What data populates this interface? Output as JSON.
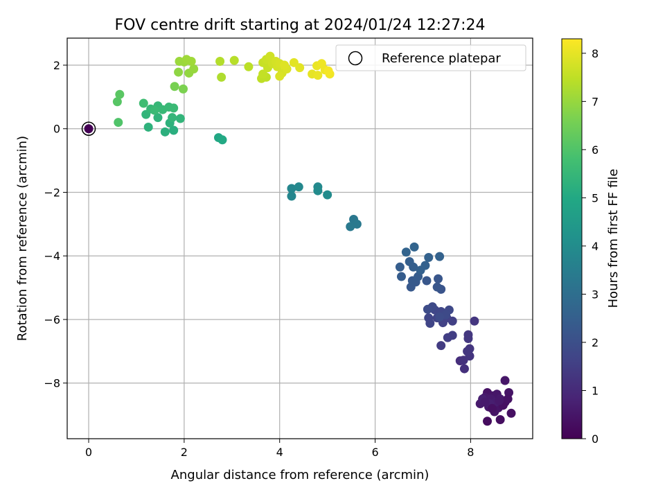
{
  "chart_data": {
    "type": "scatter",
    "title": "FOV centre drift starting at 2024/01/24 12:27:24",
    "xlabel": "Angular distance from reference (arcmin)",
    "ylabel": "Rotation from reference (arcmin)",
    "xlim": [
      -0.45,
      9.3
    ],
    "ylim": [
      -9.75,
      2.85
    ],
    "xticks": [
      0,
      2,
      4,
      6,
      8
    ],
    "xtick_labels": [
      "0",
      "2",
      "4",
      "6",
      "8"
    ],
    "yticks": [
      2,
      0,
      -2,
      -4,
      -6,
      -8
    ],
    "ytick_labels": [
      "2",
      "0",
      "−2",
      "−4",
      "−6",
      "−8"
    ],
    "grid": true,
    "legend": {
      "placement": "top-right",
      "entries": [
        "Reference platepar"
      ]
    },
    "reference_point": {
      "x": 0,
      "y": 0
    },
    "colorbar": {
      "label": "Hours from first FF file",
      "colormap": "viridis",
      "range": [
        0,
        8.3
      ],
      "ticks": [
        0,
        1,
        2,
        3,
        4,
        5,
        6,
        7,
        8
      ],
      "tick_labels": [
        "0",
        "1",
        "2",
        "3",
        "4",
        "5",
        "6",
        "7",
        "8"
      ]
    },
    "points": [
      [
        0.0,
        0.0,
        0.0
      ],
      [
        8.35,
        -8.3,
        0.4
      ],
      [
        8.28,
        -8.55,
        0.5
      ],
      [
        8.45,
        -8.4,
        0.45
      ],
      [
        8.55,
        -8.35,
        0.5
      ],
      [
        8.62,
        -8.5,
        0.6
      ],
      [
        8.38,
        -8.75,
        0.55
      ],
      [
        8.5,
        -8.9,
        0.45
      ],
      [
        8.72,
        -8.6,
        0.4
      ],
      [
        8.8,
        -8.3,
        0.45
      ],
      [
        8.72,
        -7.92,
        0.5
      ],
      [
        8.85,
        -8.95,
        0.35
      ],
      [
        8.62,
        -9.15,
        0.3
      ],
      [
        8.35,
        -9.2,
        0.25
      ],
      [
        8.2,
        -8.65,
        0.6
      ],
      [
        8.3,
        -8.45,
        0.55
      ],
      [
        8.48,
        -8.62,
        0.5
      ],
      [
        8.58,
        -8.78,
        0.45
      ],
      [
        8.42,
        -8.5,
        0.6
      ],
      [
        8.25,
        -8.5,
        0.7
      ],
      [
        8.68,
        -8.7,
        0.35
      ],
      [
        8.78,
        -8.5,
        0.4
      ],
      [
        8.52,
        -8.6,
        0.65
      ],
      [
        8.4,
        -8.65,
        0.7
      ],
      [
        8.6,
        -8.55,
        0.55
      ],
      [
        8.3,
        -8.6,
        0.6
      ],
      [
        8.45,
        -8.8,
        0.35
      ],
      [
        7.78,
        -7.3,
        1.1
      ],
      [
        7.87,
        -7.55,
        1.15
      ],
      [
        7.85,
        -7.28,
        1.2
      ],
      [
        7.98,
        -7.15,
        1.25
      ],
      [
        7.93,
        -7.0,
        1.3
      ],
      [
        7.98,
        -6.92,
        1.3
      ],
      [
        7.95,
        -6.6,
        1.35
      ],
      [
        8.08,
        -6.05,
        1.3
      ],
      [
        7.95,
        -6.48,
        1.35
      ],
      [
        7.38,
        -6.82,
        1.45
      ],
      [
        7.52,
        -6.57,
        1.5
      ],
      [
        7.62,
        -6.5,
        1.5
      ],
      [
        7.62,
        -6.05,
        1.55
      ],
      [
        7.5,
        -5.95,
        1.6
      ],
      [
        7.42,
        -6.1,
        1.6
      ],
      [
        7.3,
        -5.95,
        1.65
      ],
      [
        7.15,
        -6.12,
        1.7
      ],
      [
        7.12,
        -5.95,
        1.7
      ],
      [
        7.25,
        -5.7,
        1.75
      ],
      [
        7.38,
        -5.75,
        1.75
      ],
      [
        7.55,
        -5.7,
        1.8
      ],
      [
        7.48,
        -5.85,
        1.85
      ],
      [
        7.2,
        -5.6,
        1.85
      ],
      [
        7.1,
        -5.68,
        1.9
      ],
      [
        7.35,
        -5.92,
        1.9
      ],
      [
        7.38,
        -5.05,
        2.15
      ],
      [
        7.3,
        -4.98,
        2.2
      ],
      [
        7.32,
        -4.72,
        2.2
      ],
      [
        7.08,
        -4.78,
        2.25
      ],
      [
        6.85,
        -4.82,
        2.3
      ],
      [
        6.75,
        -4.98,
        2.3
      ],
      [
        6.78,
        -4.78,
        2.35
      ],
      [
        6.9,
        -4.65,
        2.4
      ],
      [
        6.55,
        -4.65,
        2.4
      ],
      [
        6.52,
        -4.35,
        2.45
      ],
      [
        6.72,
        -4.18,
        2.5
      ],
      [
        6.8,
        -4.35,
        2.5
      ],
      [
        6.95,
        -4.45,
        2.55
      ],
      [
        7.05,
        -4.3,
        2.55
      ],
      [
        7.12,
        -4.05,
        2.6
      ],
      [
        7.35,
        -4.02,
        2.6
      ],
      [
        6.82,
        -3.72,
        2.65
      ],
      [
        6.65,
        -3.88,
        2.65
      ],
      [
        5.55,
        -2.85,
        3.3
      ],
      [
        5.62,
        -3.0,
        3.35
      ],
      [
        5.48,
        -3.08,
        3.35
      ],
      [
        4.25,
        -1.88,
        3.8
      ],
      [
        4.25,
        -2.12,
        3.8
      ],
      [
        4.4,
        -1.83,
        3.85
      ],
      [
        4.8,
        -1.83,
        3.9
      ],
      [
        4.8,
        -1.95,
        3.95
      ],
      [
        5.0,
        -2.08,
        3.95
      ],
      [
        2.72,
        -0.28,
        4.95
      ],
      [
        2.8,
        -0.35,
        5.0
      ],
      [
        1.78,
        -0.05,
        5.2
      ],
      [
        1.6,
        -0.1,
        5.25
      ],
      [
        1.7,
        0.18,
        5.3
      ],
      [
        1.25,
        0.05,
        5.3
      ],
      [
        1.45,
        0.35,
        5.35
      ],
      [
        1.2,
        0.45,
        5.4
      ],
      [
        1.92,
        0.32,
        5.4
      ],
      [
        1.75,
        0.35,
        5.45
      ],
      [
        1.3,
        0.62,
        5.5
      ],
      [
        1.45,
        0.72,
        5.5
      ],
      [
        1.55,
        0.6,
        5.55
      ],
      [
        1.68,
        0.68,
        5.55
      ],
      [
        1.78,
        0.65,
        5.6
      ],
      [
        1.38,
        0.58,
        5.6
      ],
      [
        1.15,
        0.8,
        5.7
      ],
      [
        0.62,
        0.2,
        6.0
      ],
      [
        0.6,
        0.85,
        6.1
      ],
      [
        0.65,
        1.08,
        6.15
      ],
      [
        1.8,
        1.33,
        6.6
      ],
      [
        1.98,
        1.25,
        6.65
      ],
      [
        1.88,
        1.78,
        6.9
      ],
      [
        2.1,
        1.75,
        6.95
      ],
      [
        2.2,
        1.88,
        7.0
      ],
      [
        1.9,
        2.12,
        7.05
      ],
      [
        2.0,
        2.1,
        7.05
      ],
      [
        2.05,
        2.18,
        7.1
      ],
      [
        2.15,
        2.12,
        7.1
      ],
      [
        2.78,
        1.62,
        7.3
      ],
      [
        2.75,
        2.12,
        7.35
      ],
      [
        3.05,
        2.15,
        7.4
      ],
      [
        3.35,
        1.95,
        7.45
      ],
      [
        3.62,
        1.58,
        7.5
      ],
      [
        3.72,
        1.62,
        7.5
      ],
      [
        3.65,
        1.72,
        7.55
      ],
      [
        3.75,
        1.92,
        7.6
      ],
      [
        3.65,
        2.08,
        7.6
      ],
      [
        3.72,
        2.18,
        7.65
      ],
      [
        3.85,
        2.05,
        7.7
      ],
      [
        3.8,
        2.28,
        7.7
      ],
      [
        3.92,
        2.12,
        7.75
      ],
      [
        3.95,
        1.95,
        7.75
      ],
      [
        4.0,
        2.05,
        7.8
      ],
      [
        4.05,
        1.75,
        7.8
      ],
      [
        4.0,
        1.65,
        7.85
      ],
      [
        4.15,
        1.88,
        7.85
      ],
      [
        4.1,
        2.0,
        7.9
      ],
      [
        4.3,
        2.08,
        7.95
      ],
      [
        4.42,
        1.92,
        7.95
      ],
      [
        4.68,
        1.72,
        8.0
      ],
      [
        4.8,
        1.68,
        8.05
      ],
      [
        4.78,
        1.98,
        8.05
      ],
      [
        4.88,
        2.05,
        8.1
      ],
      [
        4.95,
        1.85,
        8.1
      ],
      [
        5.05,
        1.72,
        8.15
      ],
      [
        5.02,
        1.82,
        8.2
      ]
    ]
  }
}
